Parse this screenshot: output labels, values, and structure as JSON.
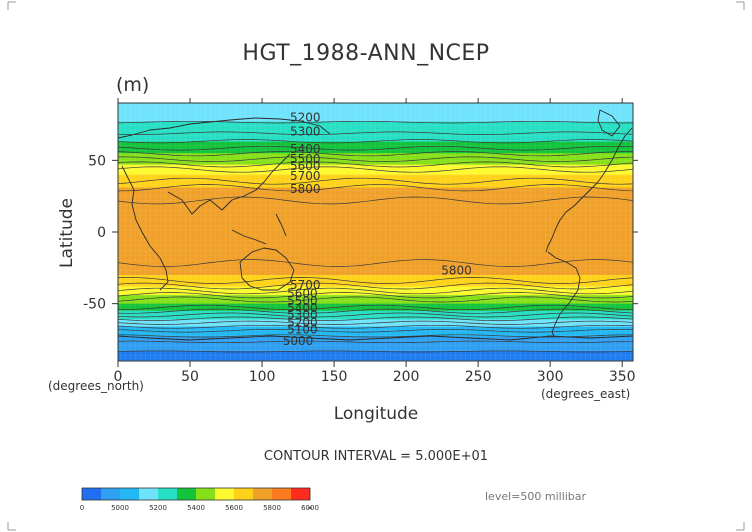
{
  "chart_data": {
    "type": "heatmap",
    "title": "HGT_1988-ANN_NCEP",
    "units": "(m)",
    "xlabel": "Longitude",
    "ylabel": "Latitude",
    "xunits": "(degrees_east)",
    "yunits": "(degrees_north)",
    "xlim": [
      0,
      357.5
    ],
    "ylim": [
      -90,
      90
    ],
    "x_ticks": [
      0,
      50,
      100,
      150,
      200,
      250,
      300,
      350
    ],
    "y_ticks": [
      50,
      0,
      -50
    ],
    "contour_interval_text": "CONTOUR INTERVAL = 5.000E+01",
    "level_text": "level=500 millibar",
    "profile": {
      "lat": [
        90,
        80,
        70,
        60,
        50,
        40,
        30,
        20,
        10,
        0,
        -10,
        -20,
        -30,
        -40,
        -50,
        -60,
        -70,
        -80,
        -90
      ],
      "hgt": [
        5250,
        5280,
        5340,
        5430,
        5560,
        5700,
        5810,
        5860,
        5880,
        5880,
        5880,
        5860,
        5800,
        5670,
        5500,
        5310,
        5130,
        5010,
        4980
      ]
    },
    "contour_labels": [
      {
        "text": "5200",
        "lon": 130,
        "lat": 80
      },
      {
        "text": "5300",
        "lon": 130,
        "lat": 70
      },
      {
        "text": "5400",
        "lon": 130,
        "lat": 58
      },
      {
        "text": "5500",
        "lon": 130,
        "lat": 51
      },
      {
        "text": "5600",
        "lon": 130,
        "lat": 46
      },
      {
        "text": "5700",
        "lon": 130,
        "lat": 39
      },
      {
        "text": "5800",
        "lon": 130,
        "lat": 30
      },
      {
        "text": "5800",
        "lon": 235,
        "lat": -27
      },
      {
        "text": "5700",
        "lon": 130,
        "lat": -37
      },
      {
        "text": "5600",
        "lon": 128,
        "lat": -43
      },
      {
        "text": "5500",
        "lon": 128,
        "lat": -48
      },
      {
        "text": "5400",
        "lon": 128,
        "lat": -53
      },
      {
        "text": "5300",
        "lon": 128,
        "lat": -58
      },
      {
        "text": "5200",
        "lon": 128,
        "lat": -63
      },
      {
        "text": "5100",
        "lon": 128,
        "lat": -68
      },
      {
        "text": "5000",
        "lon": 125,
        "lat": -76
      }
    ],
    "color_levels": [
      {
        "min": 4800,
        "max": 5000,
        "color": "#1f7df0"
      },
      {
        "min": 5000,
        "max": 5100,
        "color": "#2f9ff2"
      },
      {
        "min": 5100,
        "max": 5200,
        "color": "#23b8f4"
      },
      {
        "min": 5200,
        "max": 5300,
        "color": "#6fe3fb"
      },
      {
        "min": 5300,
        "max": 5400,
        "color": "#27dfc4"
      },
      {
        "min": 5400,
        "max": 5500,
        "color": "#12c33c"
      },
      {
        "min": 5500,
        "max": 5600,
        "color": "#86e018"
      },
      {
        "min": 5600,
        "max": 5700,
        "color": "#fdf92f"
      },
      {
        "min": 5700,
        "max": 5800,
        "color": "#ffd21a"
      },
      {
        "min": 5800,
        "max": 5900,
        "color": "#f0a12a"
      },
      {
        "min": 5900,
        "max": 6000,
        "color": "#fb7b1e"
      },
      {
        "min": 6000,
        "max": 6200,
        "color": "#ff2b1e"
      }
    ],
    "colorbar": {
      "colors": [
        "#1f6ff0",
        "#2f9ff2",
        "#23b8f4",
        "#6fe3fb",
        "#27dfc4",
        "#12c33c",
        "#86e018",
        "#fdf92f",
        "#ffd21a",
        "#f0a12a",
        "#fb7b1e",
        "#ff2b1e"
      ],
      "labels": [
        "0",
        "5000",
        "5200",
        "5400",
        "5600",
        "5800",
        "6000",
        "∞"
      ]
    }
  }
}
